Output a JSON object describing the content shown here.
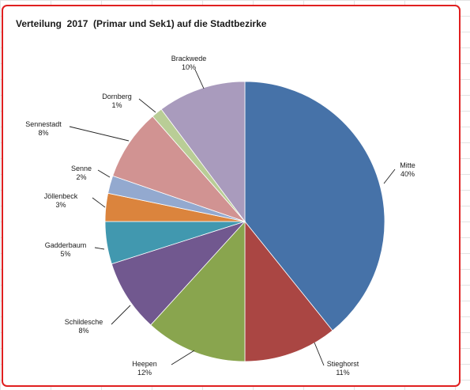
{
  "chart_data": {
    "type": "pie",
    "title": "Verteilung  2017  (Primar und Sek1) auf die Stadtbezirke",
    "slices": [
      {
        "label": "Mitte",
        "percent_label": "40%",
        "value": 40,
        "color": "#4672a8"
      },
      {
        "label": "Stieghorst",
        "percent_label": "11%",
        "value": 11,
        "color": "#aa4643"
      },
      {
        "label": "Heepen",
        "percent_label": "12%",
        "value": 12,
        "color": "#89a54e"
      },
      {
        "label": "Schildesche",
        "percent_label": "8%",
        "value": 8.5,
        "color": "#71588f"
      },
      {
        "label": "Gadderbaum",
        "percent_label": "5%",
        "value": 5,
        "color": "#4198af"
      },
      {
        "label": "Jöllenbeck",
        "percent_label": "3%",
        "value": 3.3,
        "color": "#db843d"
      },
      {
        "label": "Senne",
        "percent_label": "2%",
        "value": 2.1,
        "color": "#93a9cf"
      },
      {
        "label": "Sennestadt",
        "percent_label": "8%",
        "value": 8.4,
        "color": "#d19392"
      },
      {
        "label": "Dornberg",
        "percent_label": "1%",
        "value": 1.3,
        "color": "#b9cd96"
      },
      {
        "label": "Brackwede",
        "percent_label": "10%",
        "value": 10.4,
        "color": "#a99bbd"
      }
    ]
  }
}
